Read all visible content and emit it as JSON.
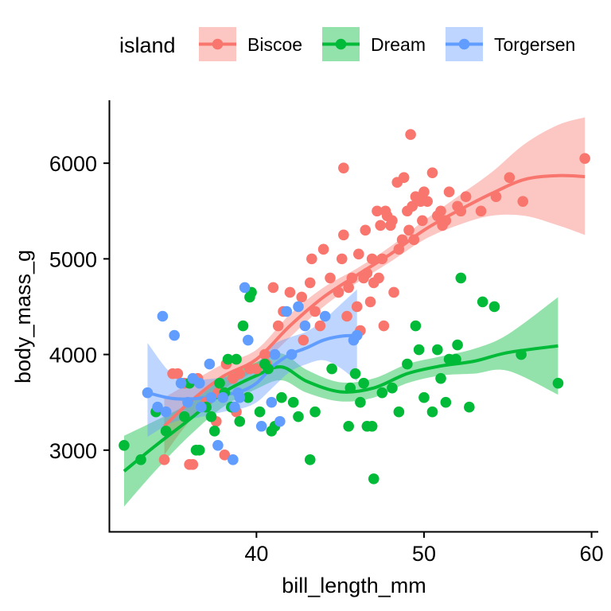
{
  "chart_data": {
    "type": "scatter",
    "xlabel": "bill_length_mm",
    "ylabel": "body_mass_g",
    "xlim": [
      31.2,
      60.4
    ],
    "ylim": [
      2150,
      6650
    ],
    "xticks": [
      40,
      50,
      60
    ],
    "yticks": [
      3000,
      4000,
      5000,
      6000
    ],
    "grid": false,
    "legend": {
      "title": "island",
      "position": "top"
    },
    "series": [
      {
        "name": "Biscoe",
        "color": "#F8766D",
        "points": [
          [
            34.5,
            2900
          ],
          [
            35.0,
            3800
          ],
          [
            35.3,
            3800
          ],
          [
            35.7,
            3700
          ],
          [
            36.0,
            2850
          ],
          [
            36.2,
            2850
          ],
          [
            36.5,
            3750
          ],
          [
            37.0,
            3500
          ],
          [
            37.6,
            3300
          ],
          [
            37.7,
            3600
          ],
          [
            38.1,
            2950
          ],
          [
            38.2,
            3900
          ],
          [
            38.8,
            3400
          ],
          [
            38.6,
            3750
          ],
          [
            39.0,
            3800
          ],
          [
            39.6,
            3850
          ],
          [
            40.0,
            3850
          ],
          [
            40.5,
            4000
          ],
          [
            40.6,
            3900
          ],
          [
            41.0,
            4700
          ],
          [
            41.3,
            4300
          ],
          [
            41.6,
            4450
          ],
          [
            42.0,
            4650
          ],
          [
            42.7,
            4600
          ],
          [
            42.8,
            4150
          ],
          [
            43.2,
            4750
          ],
          [
            43.3,
            5000
          ],
          [
            43.5,
            4450
          ],
          [
            43.8,
            4300
          ],
          [
            44.0,
            5100
          ],
          [
            44.4,
            4800
          ],
          [
            44.9,
            4650
          ],
          [
            45.1,
            5000
          ],
          [
            45.2,
            5950
          ],
          [
            45.2,
            5250
          ],
          [
            45.4,
            4400
          ],
          [
            45.5,
            4700
          ],
          [
            45.7,
            4800
          ],
          [
            46.0,
            4500
          ],
          [
            46.1,
            5050
          ],
          [
            46.2,
            4250
          ],
          [
            46.4,
            4800
          ],
          [
            46.5,
            5300
          ],
          [
            46.6,
            4850
          ],
          [
            46.8,
            4550
          ],
          [
            46.9,
            5000
          ],
          [
            47.0,
            4750
          ],
          [
            47.2,
            5500
          ],
          [
            47.3,
            4800
          ],
          [
            47.4,
            5350
          ],
          [
            47.5,
            5000
          ],
          [
            47.6,
            4300
          ],
          [
            47.7,
            5500
          ],
          [
            47.8,
            5450
          ],
          [
            48.0,
            5350
          ],
          [
            48.1,
            5400
          ],
          [
            48.2,
            4650
          ],
          [
            48.4,
            5800
          ],
          [
            48.5,
            5100
          ],
          [
            48.7,
            5200
          ],
          [
            48.8,
            5850
          ],
          [
            49.0,
            5500
          ],
          [
            49.1,
            5300
          ],
          [
            49.2,
            6300
          ],
          [
            49.3,
            5550
          ],
          [
            49.4,
            5200
          ],
          [
            49.5,
            5650
          ],
          [
            49.8,
            5600
          ],
          [
            49.9,
            5400
          ],
          [
            50.0,
            5700
          ],
          [
            50.2,
            5600
          ],
          [
            50.5,
            5900
          ],
          [
            50.8,
            5450
          ],
          [
            51.0,
            5500
          ],
          [
            51.1,
            5350
          ],
          [
            51.3,
            5400
          ],
          [
            51.5,
            5700
          ],
          [
            52.0,
            5550
          ],
          [
            52.2,
            5500
          ],
          [
            52.5,
            5650
          ],
          [
            53.4,
            5500
          ],
          [
            54.3,
            5650
          ],
          [
            55.1,
            5850
          ],
          [
            55.9,
            5600
          ],
          [
            59.6,
            6050
          ]
        ],
        "trend": [
          [
            34.5,
            3250
          ],
          [
            36,
            3500
          ],
          [
            38,
            3770
          ],
          [
            40,
            3950
          ],
          [
            42,
            4300
          ],
          [
            44,
            4600
          ],
          [
            46,
            4830
          ],
          [
            48,
            5050
          ],
          [
            50,
            5300
          ],
          [
            52,
            5500
          ],
          [
            54,
            5680
          ],
          [
            56,
            5830
          ],
          [
            58,
            5870
          ],
          [
            59.6,
            5860
          ]
        ],
        "band": [
          [
            34.5,
            2950,
            3550
          ],
          [
            36,
            3300,
            3700
          ],
          [
            38,
            3630,
            3900
          ],
          [
            40,
            3850,
            4050
          ],
          [
            42,
            4180,
            4420
          ],
          [
            44,
            4500,
            4700
          ],
          [
            46,
            4750,
            4900
          ],
          [
            48,
            4970,
            5130
          ],
          [
            50,
            5200,
            5400
          ],
          [
            52,
            5350,
            5650
          ],
          [
            54,
            5450,
            5900
          ],
          [
            56,
            5450,
            6200
          ],
          [
            58,
            5350,
            6400
          ],
          [
            59.6,
            5250,
            6480
          ]
        ]
      },
      {
        "name": "Dream",
        "color": "#00BA38",
        "points": [
          [
            32.1,
            3050
          ],
          [
            33.1,
            2900
          ],
          [
            34.0,
            3400
          ],
          [
            34.6,
            3200
          ],
          [
            35.7,
            3350
          ],
          [
            36.0,
            3700
          ],
          [
            36.4,
            3000
          ],
          [
            36.6,
            3000
          ],
          [
            37.0,
            3450
          ],
          [
            37.3,
            3350
          ],
          [
            37.5,
            3200
          ],
          [
            37.8,
            3700
          ],
          [
            38.1,
            3600
          ],
          [
            38.3,
            3950
          ],
          [
            38.5,
            3450
          ],
          [
            38.8,
            3950
          ],
          [
            39.0,
            3300
          ],
          [
            39.2,
            4300
          ],
          [
            39.5,
            3550
          ],
          [
            39.6,
            4600
          ],
          [
            39.7,
            4650
          ],
          [
            40.2,
            3400
          ],
          [
            40.5,
            3900
          ],
          [
            40.7,
            3850
          ],
          [
            40.9,
            3200
          ],
          [
            41.1,
            3250
          ],
          [
            41.5,
            3550
          ],
          [
            42.2,
            3500
          ],
          [
            42.5,
            3350
          ],
          [
            43.2,
            2900
          ],
          [
            43.5,
            3400
          ],
          [
            44.5,
            3850
          ],
          [
            45.5,
            3250
          ],
          [
            45.6,
            3650
          ],
          [
            45.9,
            3800
          ],
          [
            46.2,
            3500
          ],
          [
            46.4,
            3700
          ],
          [
            46.6,
            3250
          ],
          [
            46.9,
            3250
          ],
          [
            47.0,
            2700
          ],
          [
            47.5,
            3600
          ],
          [
            48.1,
            3650
          ],
          [
            48.5,
            3400
          ],
          [
            49.0,
            3900
          ],
          [
            49.5,
            4300
          ],
          [
            49.7,
            4050
          ],
          [
            50.0,
            3550
          ],
          [
            50.5,
            3400
          ],
          [
            50.8,
            4050
          ],
          [
            51.0,
            3750
          ],
          [
            51.3,
            3500
          ],
          [
            51.5,
            3950
          ],
          [
            51.9,
            3950
          ],
          [
            52.0,
            4100
          ],
          [
            52.2,
            4800
          ],
          [
            52.7,
            3450
          ],
          [
            53.5,
            4550
          ],
          [
            54.2,
            4500
          ],
          [
            55.8,
            4000
          ],
          [
            58.0,
            3700
          ]
        ],
        "trend": [
          [
            32.1,
            2780
          ],
          [
            34,
            3050
          ],
          [
            36,
            3320
          ],
          [
            38,
            3600
          ],
          [
            40,
            3780
          ],
          [
            41.5,
            3870
          ],
          [
            43,
            3720
          ],
          [
            45,
            3610
          ],
          [
            47,
            3650
          ],
          [
            49,
            3800
          ],
          [
            51,
            3880
          ],
          [
            53,
            3930
          ],
          [
            55,
            4020
          ],
          [
            58,
            4090
          ]
        ],
        "band": [
          [
            32.1,
            2410,
            3150
          ],
          [
            34,
            2790,
            3310
          ],
          [
            36,
            3150,
            3490
          ],
          [
            38,
            3450,
            3750
          ],
          [
            40,
            3640,
            3920
          ],
          [
            41.5,
            3730,
            4010
          ],
          [
            43,
            3600,
            3840
          ],
          [
            45,
            3510,
            3710
          ],
          [
            47,
            3550,
            3750
          ],
          [
            49,
            3700,
            3900
          ],
          [
            51,
            3780,
            3980
          ],
          [
            53,
            3800,
            4060
          ],
          [
            55,
            3830,
            4210
          ],
          [
            58,
            3580,
            4600
          ]
        ]
      },
      {
        "name": "Torgersen",
        "color": "#619CFF",
        "points": [
          [
            33.5,
            3600
          ],
          [
            34.1,
            3450
          ],
          [
            34.4,
            4400
          ],
          [
            34.6,
            3400
          ],
          [
            35.1,
            4200
          ],
          [
            35.5,
            3700
          ],
          [
            35.9,
            3500
          ],
          [
            36.2,
            3750
          ],
          [
            36.6,
            3700
          ],
          [
            36.7,
            3450
          ],
          [
            37.2,
            3900
          ],
          [
            37.3,
            3550
          ],
          [
            37.7,
            3050
          ],
          [
            38.0,
            3550
          ],
          [
            38.6,
            2900
          ],
          [
            38.7,
            3450
          ],
          [
            38.9,
            3600
          ],
          [
            39.0,
            3550
          ],
          [
            39.3,
            4700
          ],
          [
            39.5,
            4150
          ],
          [
            40.3,
            3250
          ],
          [
            40.9,
            3500
          ],
          [
            41.1,
            4000
          ],
          [
            41.4,
            3300
          ],
          [
            41.8,
            4450
          ],
          [
            42.1,
            4000
          ],
          [
            42.5,
            4500
          ],
          [
            42.9,
            4300
          ],
          [
            44.1,
            4400
          ],
          [
            45.8,
            4150
          ],
          [
            46.0,
            4200
          ]
        ],
        "trend": [
          [
            33.5,
            3600
          ],
          [
            35,
            3540
          ],
          [
            36.5,
            3540
          ],
          [
            38,
            3580
          ],
          [
            39,
            3610
          ],
          [
            40,
            3700
          ],
          [
            41,
            3880
          ],
          [
            42,
            4000
          ],
          [
            43,
            4070
          ],
          [
            44,
            4150
          ],
          [
            45,
            4190
          ],
          [
            46,
            4200
          ]
        ],
        "band": [
          [
            33.5,
            3140,
            4120
          ],
          [
            35,
            3290,
            3790
          ],
          [
            36.5,
            3340,
            3740
          ],
          [
            38,
            3400,
            3760
          ],
          [
            39,
            3430,
            3790
          ],
          [
            40,
            3500,
            3900
          ],
          [
            41,
            3660,
            4100
          ],
          [
            42,
            3820,
            4180
          ],
          [
            43,
            3900,
            4240
          ],
          [
            44,
            3940,
            4360
          ],
          [
            45,
            3860,
            4520
          ],
          [
            46,
            3720,
            4680
          ]
        ]
      }
    ]
  }
}
